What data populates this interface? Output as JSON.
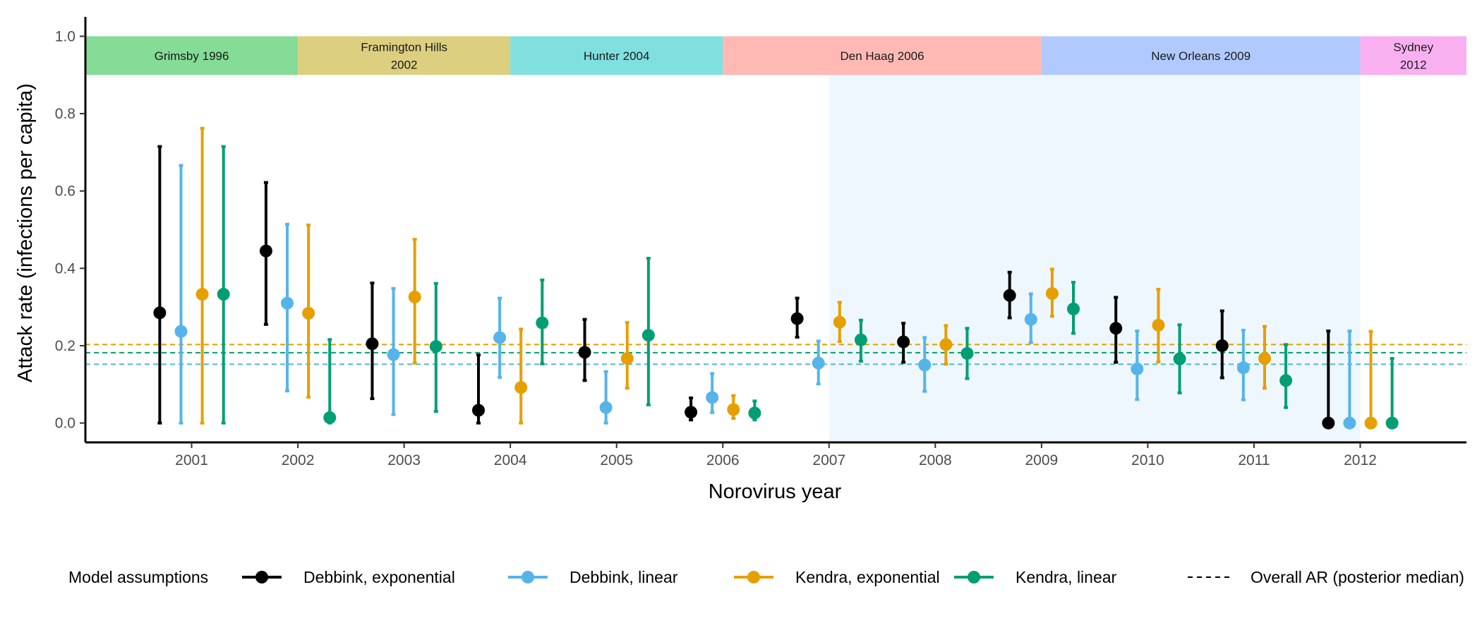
{
  "chart_data": {
    "type": "scatter",
    "title": "",
    "xlabel": "Norovirus year",
    "ylabel": "Attack rate (infections per capita)",
    "ylim": [
      -0.05,
      1.05
    ],
    "yticks": [
      "0.0",
      "0.2",
      "0.4",
      "0.6",
      "0.8",
      "1.0"
    ],
    "xlim": [
      2000,
      2013
    ],
    "categories": [
      "2001",
      "2002",
      "2003",
      "2004",
      "2005",
      "2006",
      "2007",
      "2008",
      "2009",
      "2010",
      "2011",
      "2012"
    ],
    "strain_periods": [
      {
        "lines": [
          "Grimsby 1996"
        ],
        "start": 2000,
        "end": 2002,
        "color": "#84dc96"
      },
      {
        "lines": [
          "Framington Hills",
          "2002"
        ],
        "start": 2002,
        "end": 2004,
        "color": "#dccf7f"
      },
      {
        "lines": [
          "Hunter 2004"
        ],
        "start": 2004,
        "end": 2006,
        "color": "#80e0e0"
      },
      {
        "lines": [
          "Den Haag 2006"
        ],
        "start": 2006,
        "end": 2009,
        "color": "#ffb9b4"
      },
      {
        "lines": [
          "New Orleans 2009"
        ],
        "start": 2009,
        "end": 2012,
        "color": "#b0caff"
      },
      {
        "lines": [
          "Sydney",
          "2012"
        ],
        "start": 2012,
        "end": 2013,
        "color": "#f9b0f1"
      }
    ],
    "highlight_region": {
      "start": 2007,
      "end": 2012,
      "color": "#eef7fd"
    },
    "series": [
      {
        "name": "Debbink, exponential",
        "color": "#000000",
        "offset": -0.3,
        "values": [
          0.285,
          0.445,
          0.205,
          0.033,
          0.183,
          0.028,
          0.27,
          0.21,
          0.33,
          0.245,
          0.2,
          0.0
        ],
        "lower": [
          0.0,
          0.255,
          0.063,
          0.0,
          0.11,
          0.008,
          0.222,
          0.157,
          0.272,
          0.157,
          0.117,
          0.0
        ],
        "upper": [
          0.715,
          0.622,
          0.362,
          0.176,
          0.268,
          0.065,
          0.323,
          0.258,
          0.39,
          0.325,
          0.29,
          0.238
        ]
      },
      {
        "name": "Debbink, linear",
        "color": "#56b4e9",
        "offset": -0.1,
        "values": [
          0.237,
          0.31,
          0.177,
          0.221,
          0.04,
          0.066,
          0.155,
          0.15,
          0.268,
          0.14,
          0.143,
          0.0
        ],
        "lower": [
          0.0,
          0.083,
          0.022,
          0.118,
          0.0,
          0.027,
          0.101,
          0.082,
          0.208,
          0.061,
          0.06,
          0.0
        ],
        "upper": [
          0.666,
          0.514,
          0.348,
          0.323,
          0.133,
          0.128,
          0.212,
          0.221,
          0.334,
          0.238,
          0.24,
          0.238
        ]
      },
      {
        "name": "Kendra, exponential",
        "color": "#e69f00",
        "offset": 0.1,
        "values": [
          0.333,
          0.284,
          0.326,
          0.092,
          0.167,
          0.035,
          0.261,
          0.203,
          0.335,
          0.253,
          0.167,
          0.0
        ],
        "lower": [
          0.0,
          0.067,
          0.155,
          0.0,
          0.09,
          0.012,
          0.211,
          0.152,
          0.276,
          0.158,
          0.09,
          0.0
        ],
        "upper": [
          0.762,
          0.512,
          0.475,
          0.243,
          0.26,
          0.071,
          0.312,
          0.252,
          0.398,
          0.346,
          0.25,
          0.237
        ]
      },
      {
        "name": "Kendra, linear",
        "color": "#009e73",
        "offset": 0.3,
        "values": [
          0.333,
          0.014,
          0.198,
          0.259,
          0.227,
          0.026,
          0.215,
          0.18,
          0.295,
          0.166,
          0.11,
          0.0
        ],
        "lower": [
          0.0,
          0.0,
          0.03,
          0.153,
          0.047,
          0.008,
          0.16,
          0.115,
          0.232,
          0.078,
          0.04,
          0.0
        ],
        "upper": [
          0.715,
          0.216,
          0.361,
          0.37,
          0.426,
          0.057,
          0.266,
          0.245,
          0.364,
          0.254,
          0.203,
          0.167
        ]
      }
    ],
    "overall_lines": [
      {
        "series": "Kendra, exponential",
        "value": 0.203,
        "color": "#e69f00"
      },
      {
        "series": "Kendra, linear",
        "value": 0.182,
        "color": "#009e73"
      },
      {
        "series": "Debbink, linear",
        "value": 0.152,
        "color": "#56b4e9"
      }
    ],
    "legend": {
      "placement": "bottom",
      "title": "Model assumptions",
      "dashed_label": "Overall AR (posterior median)"
    }
  }
}
